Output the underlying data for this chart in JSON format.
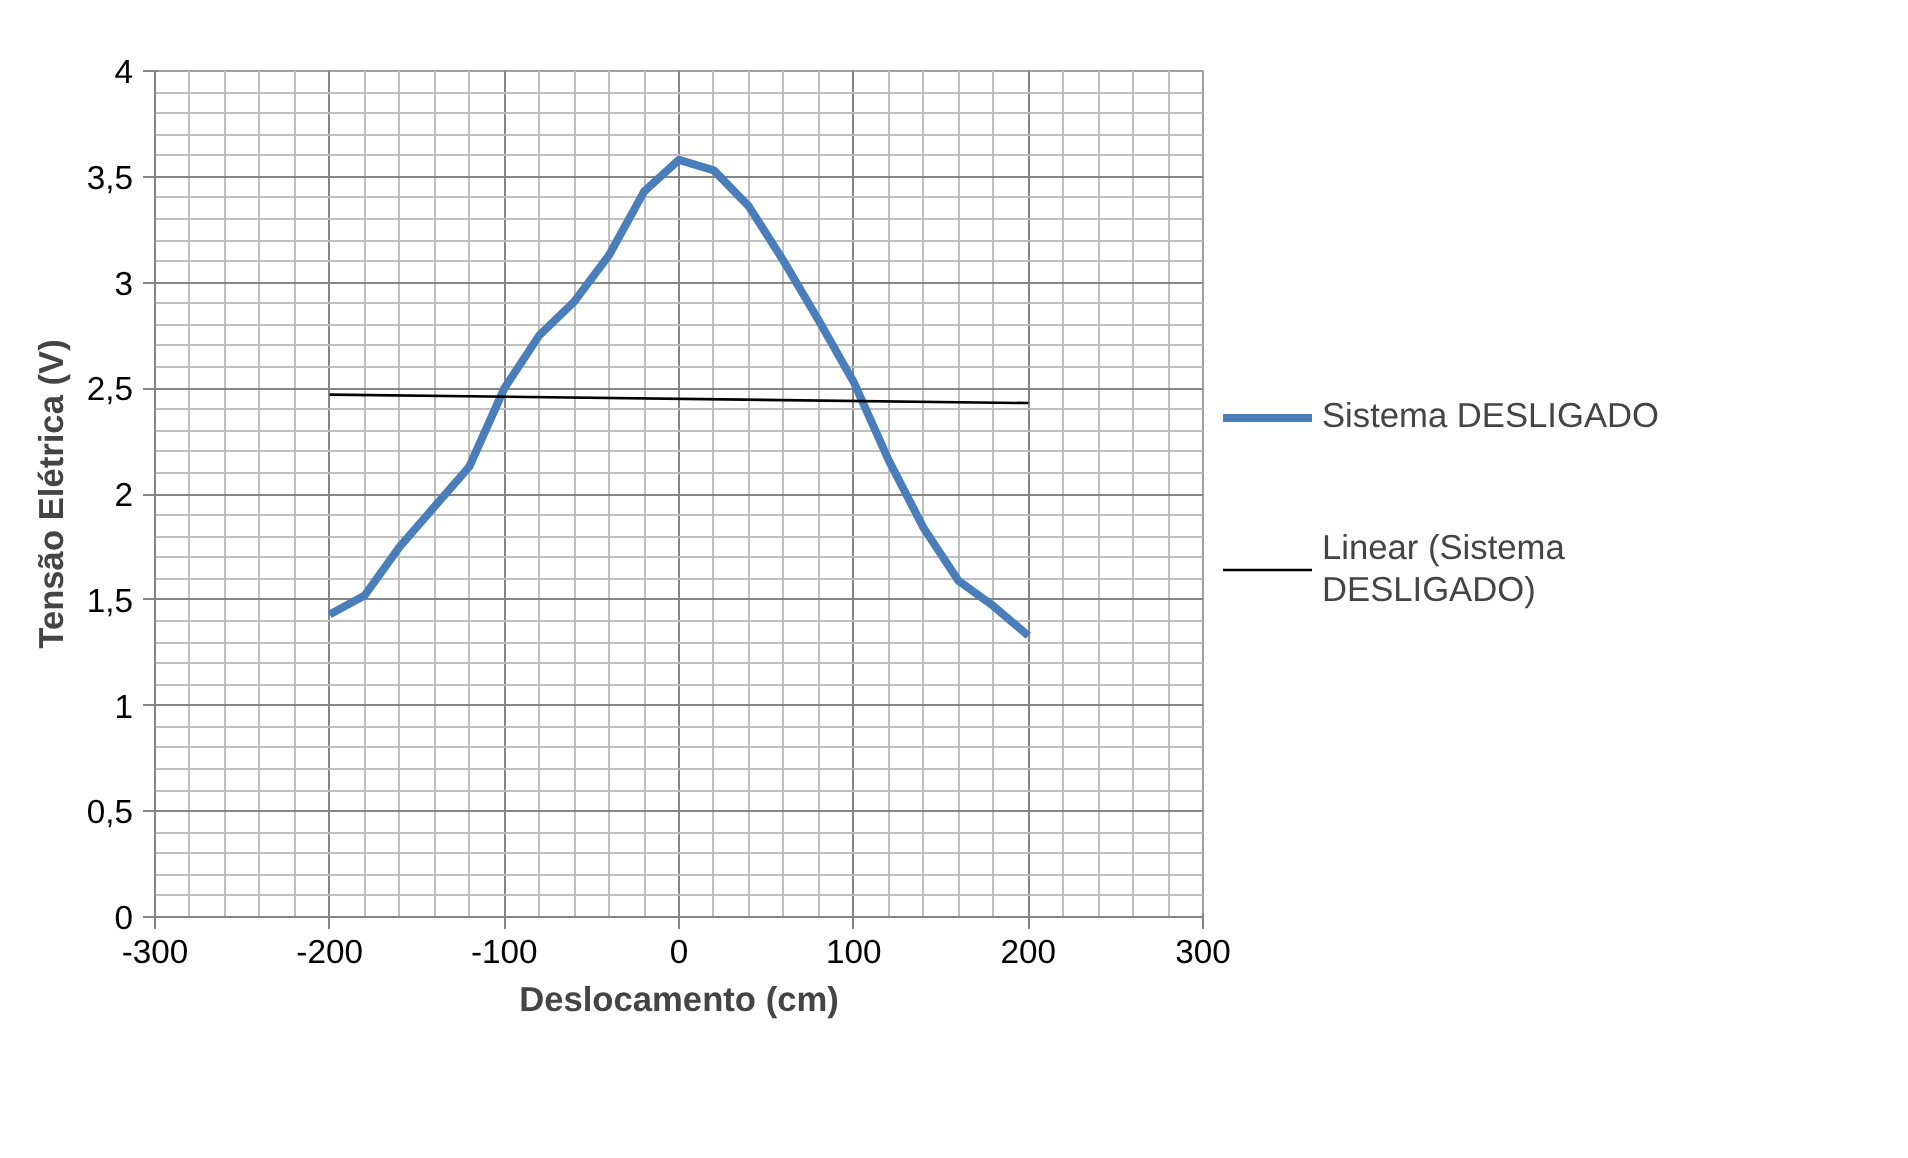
{
  "chart_data": {
    "type": "line",
    "xlabel": "Deslocamento (cm)",
    "ylabel": "Tensão Elétrica (V)",
    "x": [
      -200,
      -180,
      -160,
      -140,
      -120,
      -100,
      -80,
      -60,
      -40,
      -20,
      0,
      20,
      40,
      60,
      80,
      100,
      120,
      140,
      160,
      180,
      200
    ],
    "series": [
      {
        "name": "Sistema DESLIGADO",
        "color": "#4a7ebb",
        "values": [
          1.43,
          1.52,
          1.75,
          1.94,
          2.13,
          2.5,
          2.75,
          2.91,
          3.13,
          3.43,
          3.58,
          3.53,
          3.36,
          3.1,
          2.82,
          2.53,
          2.16,
          1.84,
          1.59,
          1.47,
          1.33
        ]
      },
      {
        "name": "Linear (Sistema DESLIGADO)",
        "color": "#000000",
        "x": [
          -200,
          200
        ],
        "values": [
          2.47,
          2.43
        ]
      }
    ],
    "xlim": [
      -300,
      300
    ],
    "xticks": [
      -300,
      -200,
      -100,
      0,
      100,
      200,
      300
    ],
    "ylim": [
      0,
      4
    ],
    "yticks": [
      0,
      {
        "value": 0.5,
        "label": "0,5"
      },
      1,
      {
        "value": 1.5,
        "label": "1,5"
      },
      2,
      {
        "value": 2.5,
        "label": "2,5"
      },
      3,
      {
        "value": 3.5,
        "label": "3,5"
      },
      4
    ],
    "grid": true,
    "legend": "right",
    "marker": "none",
    "line_style": "solid"
  }
}
